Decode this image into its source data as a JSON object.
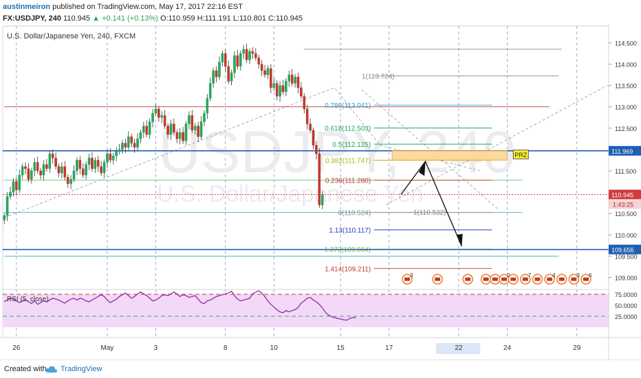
{
  "header": {
    "author": "austinmeiron",
    "published": "published on TradingView.com, May 17, 2017 22:16 EST",
    "symbol": "FX:USDJPY, 240",
    "last": "110.945",
    "change": "▲ +0.141 (+0.13%)",
    "ohlc": "O:110.959 H:111.191 L:110.801 C:110.945"
  },
  "footer": {
    "created_with": "Created with",
    "brand": "TradingView"
  },
  "colors": {
    "up": "#26a65b",
    "down": "#c0392b",
    "rsi": "#8e2a9b",
    "fib_blue": "#1f5fb4"
  },
  "chart_data": {
    "type": "candlestick",
    "title": "U.S. Dollar/Japanese Yen, 240, FXCM",
    "watermark_big": "USDJPY, 240",
    "watermark_small": "U.S. Dollar/Japanese Yen",
    "ylim": [
      108.75,
      114.7
    ],
    "y_ticks": [
      "114.500",
      "114.000",
      "113.500",
      "113.000",
      "112.500",
      "112.000",
      "111.500",
      "111.000",
      "110.500",
      "110.000",
      "109.500",
      "109.000"
    ],
    "x_ticks": [
      {
        "label": "26",
        "i": 4
      },
      {
        "label": "May",
        "i": 34
      },
      {
        "label": "3",
        "i": 50
      },
      {
        "label": "8",
        "i": 73
      },
      {
        "label": "10",
        "i": 89
      },
      {
        "label": "15",
        "i": 111
      },
      {
        "label": "17",
        "i": 127
      },
      {
        "label": "22",
        "i": 150
      },
      {
        "label": "24",
        "i": 166
      },
      {
        "label": "29",
        "i": 189
      }
    ],
    "current_price": {
      "value": 110.945,
      "label": "110.945",
      "countdown": "1:43:25"
    },
    "closes": [
      110.45,
      110.9,
      111.0,
      111.25,
      111.05,
      111.4,
      111.6,
      111.55,
      111.3,
      111.5,
      111.7,
      111.5,
      111.4,
      111.65,
      111.55,
      111.9,
      111.8,
      111.6,
      111.45,
      111.6,
      111.35,
      111.2,
      111.3,
      111.5,
      111.75,
      111.55,
      111.4,
      111.65,
      111.8,
      111.55,
      111.75,
      111.6,
      111.45,
      111.7,
      111.9,
      111.75,
      111.85,
      111.95,
      112.0,
      112.15,
      112.05,
      112.3,
      112.15,
      112.05,
      112.25,
      112.4,
      112.55,
      112.35,
      112.65,
      112.85,
      112.95,
      112.75,
      112.8,
      112.55,
      112.35,
      112.6,
      112.4,
      112.25,
      112.4,
      112.2,
      112.6,
      112.8,
      112.45,
      112.55,
      112.3,
      112.65,
      112.85,
      113.2,
      113.55,
      113.85,
      113.7,
      114.05,
      114.25,
      113.95,
      113.6,
      113.8,
      114.2,
      113.95,
      114.25,
      114.35,
      114.1,
      114.3,
      114.25,
      114.15,
      114.0,
      113.85,
      113.75,
      113.9,
      113.45,
      113.55,
      113.25,
      113.5,
      113.35,
      113.6,
      113.75,
      113.55,
      113.7,
      113.45,
      113.25,
      112.95,
      112.6,
      112.45,
      112.1,
      111.9,
      110.7,
      110.95
    ],
    "fib_levels": [
      {
        "label": "1(113.724)",
        "value": 113.724
      },
      {
        "label": "0.786(113.041)",
        "value": 113.041
      },
      {
        "label": "0.618(112.503)",
        "value": 112.503
      },
      {
        "label": "0.5(112.125)",
        "value": 112.125
      },
      {
        "label": "0.382(111.747)",
        "value": 111.747
      },
      {
        "label": "0.236(111.280)",
        "value": 111.28
      },
      {
        "label": "0(110.524)",
        "value": 110.524
      },
      {
        "label": "1(110.532)",
        "value": 110.532
      },
      {
        "label": "1.13(110.117)",
        "value": 110.117
      },
      {
        "label": "1.272(109.664)",
        "value": 109.664
      },
      {
        "label": "1.414(109.211)",
        "value": 109.211
      }
    ],
    "blue_lines": [
      {
        "value": 111.969,
        "label": "111.969"
      },
      {
        "value": 109.656,
        "label": "109.656"
      }
    ],
    "prz": {
      "label": "PRZ",
      "from": 111.75,
      "to": 111.97
    },
    "rsi": {
      "label": "RSI (5, close)",
      "ylim": [
        0,
        100
      ],
      "y_ticks": [
        "75.0000",
        "50.0000",
        "25.0000"
      ],
      "upper": 75,
      "lower": 25,
      "values": [
        58,
        62,
        66,
        64,
        60,
        56,
        60,
        63,
        58,
        54,
        60,
        52,
        56,
        60,
        58,
        62,
        66,
        64,
        62,
        58,
        55,
        60,
        64,
        66,
        62,
        66,
        64,
        60,
        58,
        62,
        66,
        70,
        74,
        70,
        62,
        56,
        60,
        64,
        70,
        74,
        78,
        72,
        66,
        70,
        76,
        80,
        76,
        72,
        66,
        60,
        62,
        66,
        72,
        74,
        72,
        76,
        80,
        76,
        70,
        74,
        72,
        68,
        70,
        72,
        64,
        56,
        54,
        60,
        62,
        66,
        70,
        72,
        74,
        76,
        78,
        82,
        72,
        64,
        60,
        62,
        64,
        66,
        76,
        80,
        84,
        78,
        70,
        60,
        52,
        46,
        40,
        35,
        33,
        38,
        35,
        38,
        40,
        45,
        55,
        60,
        66,
        68,
        62,
        58,
        52,
        44,
        34,
        28,
        24,
        22,
        20,
        19,
        17,
        16,
        20,
        22,
        22
      ]
    },
    "events": [
      {
        "count": "3",
        "at": 133
      },
      {
        "count": "",
        "at": 143
      },
      {
        "count": "",
        "at": 153
      },
      {
        "count": "",
        "at": 159
      },
      {
        "count": "",
        "at": 162
      },
      {
        "count": "2",
        "at": 165
      },
      {
        "count": "",
        "at": 168
      },
      {
        "count": "7",
        "at": 172
      },
      {
        "count": "",
        "at": 176
      },
      {
        "count": "4",
        "at": 180
      },
      {
        "count": "",
        "at": 184
      },
      {
        "count": "3",
        "at": 188
      },
      {
        "count": "6",
        "at": 192
      }
    ]
  }
}
